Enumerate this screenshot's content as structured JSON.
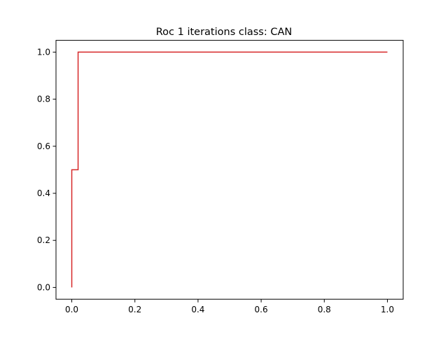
{
  "chart_data": {
    "type": "line",
    "title": "Roc 1 iterations class: CAN",
    "xlabel": "",
    "ylabel": "",
    "xlim": [
      -0.05,
      1.05
    ],
    "ylim": [
      -0.05,
      1.05
    ],
    "x_ticks": [
      0.0,
      0.2,
      0.4,
      0.6,
      0.8,
      1.0
    ],
    "y_ticks": [
      0.0,
      0.2,
      0.4,
      0.6,
      0.8,
      1.0
    ],
    "x_tick_labels": [
      "0.0",
      "0.2",
      "0.4",
      "0.6",
      "0.8",
      "1.0"
    ],
    "y_tick_labels": [
      "0.0",
      "0.2",
      "0.4",
      "0.6",
      "0.8",
      "1.0"
    ],
    "grid": false,
    "legend": "none",
    "series": [
      {
        "color": "#d62728",
        "x": [
          0.0,
          0.0,
          0.0,
          0.02,
          0.02,
          1.0
        ],
        "y": [
          0.0,
          0.0,
          0.5,
          0.5,
          1.0,
          1.0
        ]
      }
    ]
  }
}
